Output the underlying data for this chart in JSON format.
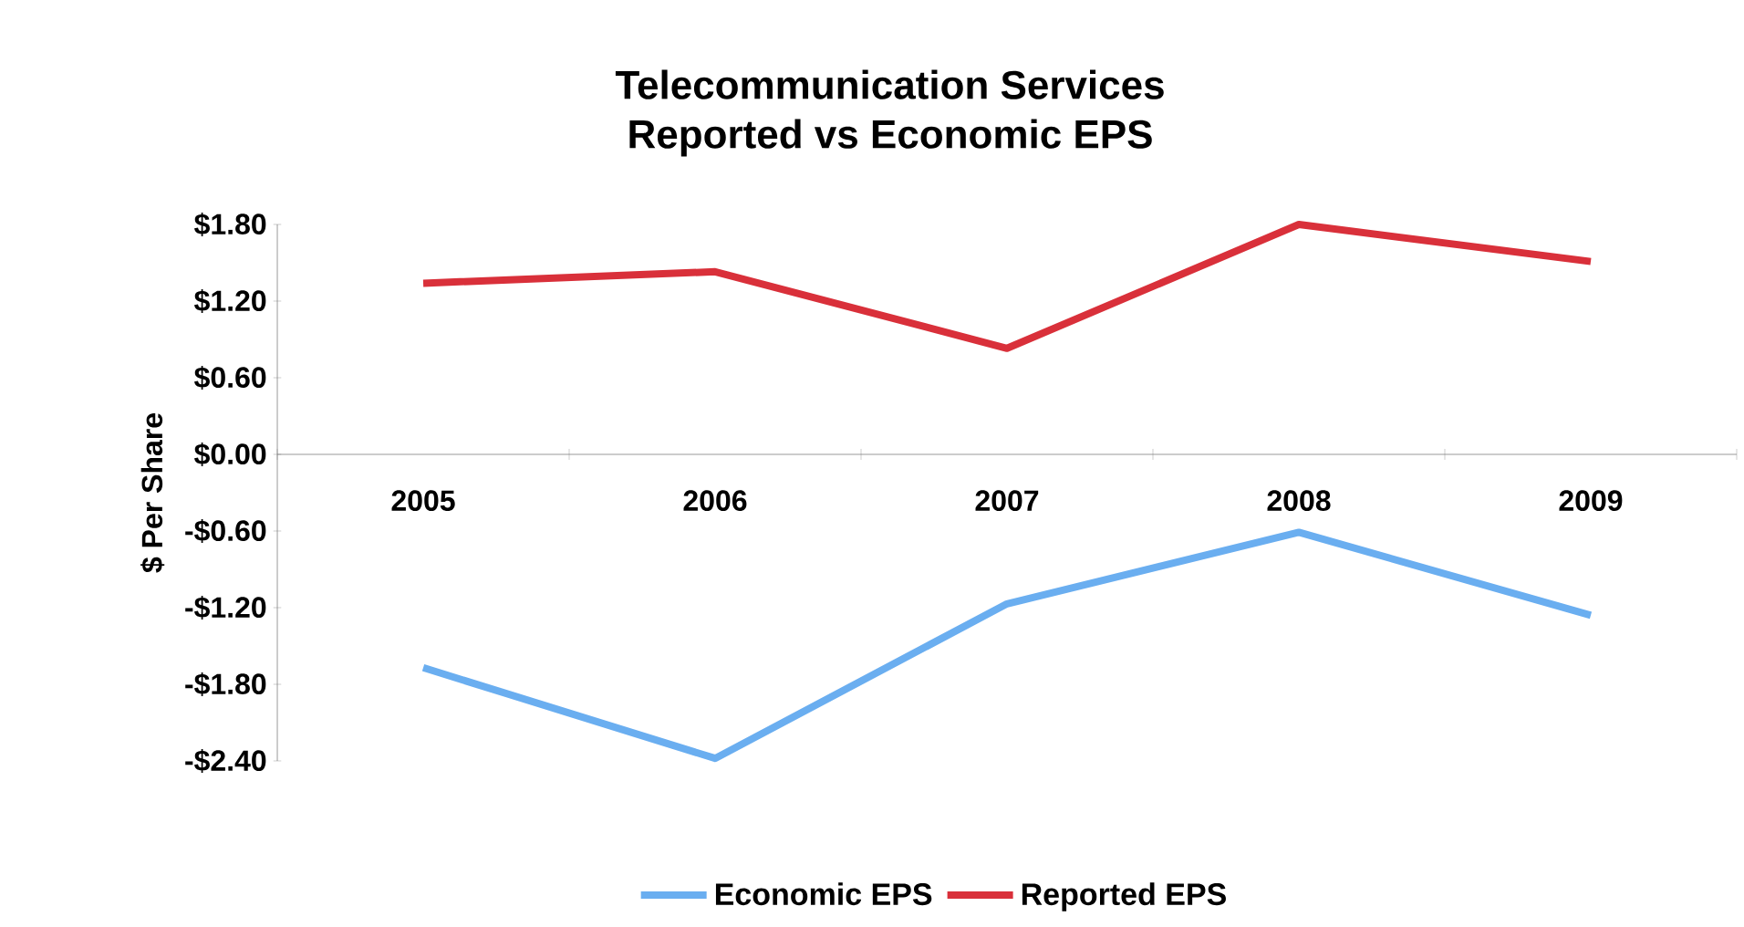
{
  "chart_data": {
    "type": "line",
    "title": "Telecommunication Services",
    "subtitle": "Reported vs Economic EPS",
    "ylabel": "$ Per Share",
    "categories": [
      "2005",
      "2006",
      "2007",
      "2008",
      "2009"
    ],
    "series": [
      {
        "name": "Economic EPS",
        "color": "#6aaef0",
        "values": [
          -1.67,
          -2.38,
          -1.17,
          -0.61,
          -1.26
        ]
      },
      {
        "name": "Reported EPS",
        "color": "#d9303a",
        "values": [
          1.34,
          1.43,
          0.83,
          1.8,
          1.51
        ]
      }
    ],
    "ylim": [
      -2.4,
      1.8
    ],
    "yticks": [
      {
        "value": 1.8,
        "label": "$1.80"
      },
      {
        "value": 1.2,
        "label": "$1.20"
      },
      {
        "value": 0.6,
        "label": "$0.60"
      },
      {
        "value": 0,
        "label": "$0.00"
      },
      {
        "value": -0.6,
        "label": "-$0.60"
      },
      {
        "value": -1.2,
        "label": "-$1.20"
      },
      {
        "value": -1.8,
        "label": "-$1.80"
      },
      {
        "value": -2.4,
        "label": "-$2.40"
      }
    ],
    "grid": false,
    "legend": "bottom",
    "marker": "none",
    "line_style": "solid"
  }
}
